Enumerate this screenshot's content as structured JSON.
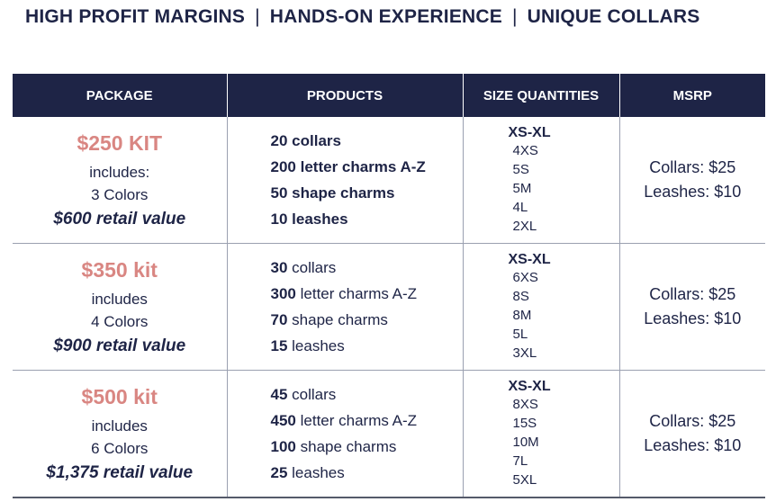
{
  "headline": {
    "part1": "HIGH PROFIT MARGINS",
    "sep1": "|",
    "part2": "HANDS-ON EXPERIENCE",
    "sep2": "|",
    "part3": "UNIQUE COLLARS"
  },
  "table": {
    "headers": [
      "PACKAGE",
      "PRODUCTS",
      "SIZE QUANTITIES",
      "MSRP"
    ],
    "rows": [
      {
        "kit": "$250 KIT",
        "includes": "includes:",
        "colors": "3 Colors",
        "retail": "$600 retail value",
        "products": [
          {
            "qty": "20",
            "name": "collars"
          },
          {
            "qty": "200",
            "name": "letter charms A-Z"
          },
          {
            "qty": "50",
            "name": "shape charms"
          },
          {
            "qty": "10",
            "name": "leashes"
          }
        ],
        "size_range": "XS-XL",
        "sizes": [
          "4XS",
          "5S",
          "5M",
          "4L",
          "2XL"
        ],
        "msrp_collars": "Collars: $25",
        "msrp_leashes": "Leashes: $10"
      },
      {
        "kit": "$350 kit",
        "includes": "includes",
        "colors": "4 Colors",
        "retail": "$900 retail value",
        "products": [
          {
            "qty": "30",
            "name": "collars"
          },
          {
            "qty": "300",
            "name": "letter charms A-Z"
          },
          {
            "qty": "70",
            "name": "shape charms"
          },
          {
            "qty": "15",
            "name": "leashes"
          }
        ],
        "size_range": "XS-XL",
        "sizes": [
          "6XS",
          "8S",
          "8M",
          "5L",
          "3XL"
        ],
        "msrp_collars": "Collars: $25",
        "msrp_leashes": "Leashes: $10"
      },
      {
        "kit": "$500 kit",
        "includes": "includes",
        "colors": "6 Colors",
        "retail": "$1,375 retail value",
        "products": [
          {
            "qty": "45",
            "name": "collars"
          },
          {
            "qty": "450",
            "name": "letter charms A-Z"
          },
          {
            "qty": "100",
            "name": "shape charms"
          },
          {
            "qty": "25",
            "name": "leashes"
          }
        ],
        "size_range": "XS-XL",
        "sizes": [
          "8XS",
          "15S",
          "10M",
          "7L",
          "5XL"
        ],
        "msrp_collars": "Collars: $25",
        "msrp_leashes": "Leashes: $10"
      }
    ]
  },
  "colors": {
    "navy": "#1e2446",
    "kit_pink": "#d98682"
  }
}
